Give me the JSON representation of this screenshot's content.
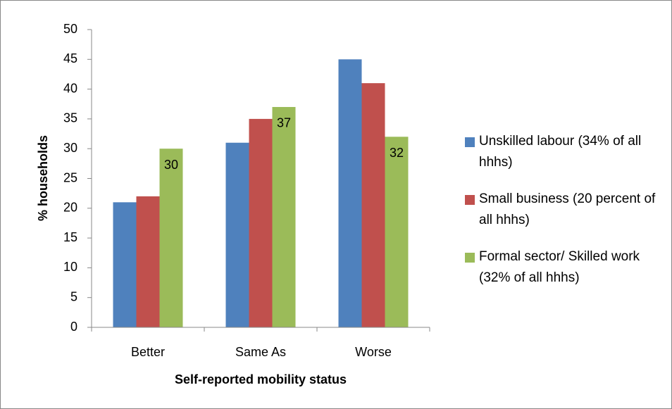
{
  "chart_data": {
    "type": "bar",
    "categories": [
      "Better",
      "Same As",
      "Worse"
    ],
    "series": [
      {
        "name": "Unskilled labour (34% of all hhhs)",
        "color": "#4f81bd",
        "values": [
          21,
          31,
          45
        ]
      },
      {
        "name": "Small business (20 percent of all hhhs)",
        "color": "#c0504d",
        "values": [
          22,
          35,
          41
        ]
      },
      {
        "name": "Formal sector/ Skilled work (32% of all hhhs)",
        "color": "#9bbb59",
        "values": [
          30,
          37,
          32
        ],
        "show_values": true
      }
    ],
    "x_label": "Self-reported mobility status",
    "y_label": "% households",
    "ylim": [
      0,
      50
    ],
    "yticks": [
      0,
      5,
      10,
      15,
      20,
      25,
      30,
      35,
      40,
      45,
      50
    ],
    "legend": "right"
  }
}
